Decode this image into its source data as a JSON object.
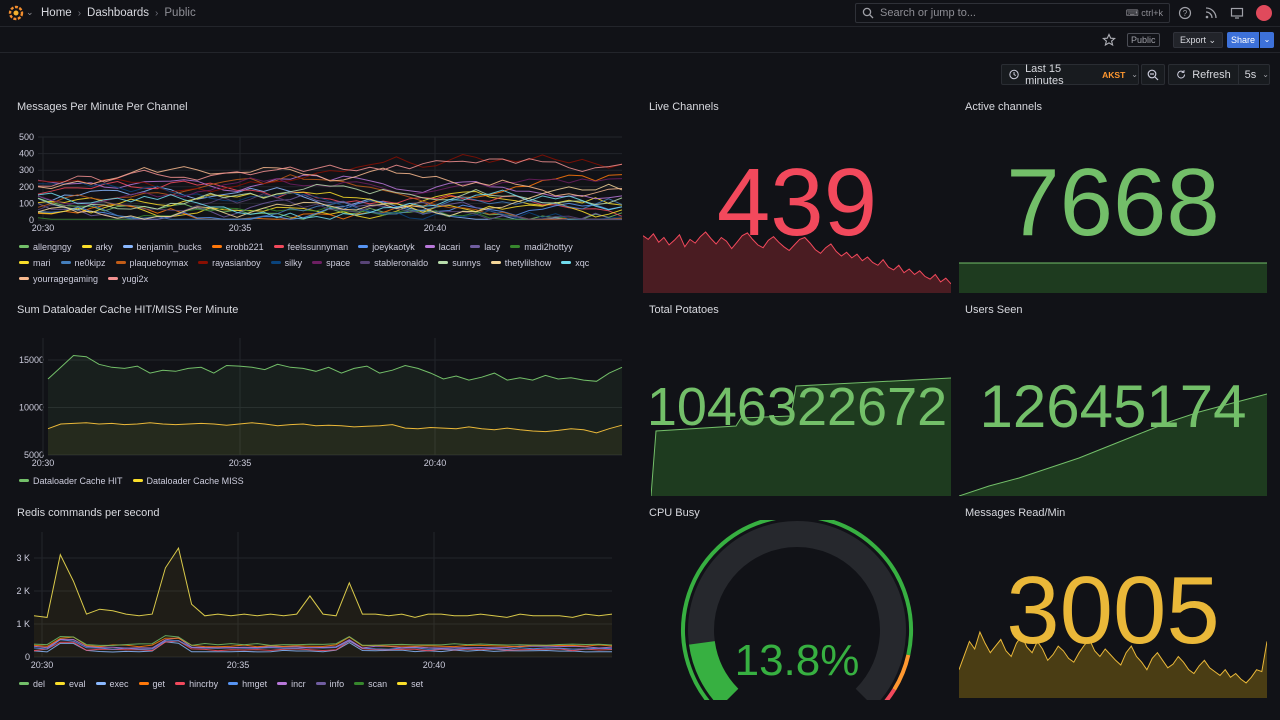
{
  "topbar": {
    "breadcrumbs": [
      "Home",
      "Dashboards",
      "Public"
    ],
    "search_placeholder": "Search or jump to...",
    "search_shortcut": "ctrl+k"
  },
  "dashbar": {
    "public_tag": "Public",
    "export_label": "Export",
    "share_label": "Share"
  },
  "timepicker": {
    "range_label": "Last 15 minutes",
    "timezone": "AKST",
    "refresh_label": "Refresh",
    "refresh_interval": "5s"
  },
  "colors": {
    "green": "#73bf69",
    "red": "#f2495c",
    "yellow": "#fade2a",
    "orange": "#ff9830",
    "blue": "#5794f2",
    "purple": "#b877d9",
    "gauge_green": "#37b041"
  },
  "panels": {
    "messages_per_minute": {
      "title": "Messages Per Minute Per Channel",
      "y_ticks": [
        "500",
        "400",
        "300",
        "200",
        "100",
        "0"
      ],
      "x_ticks": [
        "20:30",
        "20:35",
        "20:40"
      ],
      "legend": [
        {
          "name": "allengngy",
          "color": "#73bf69"
        },
        {
          "name": "arky",
          "color": "#fade2a"
        },
        {
          "name": "benjamin_bucks",
          "color": "#8ab8ff"
        },
        {
          "name": "erobb221",
          "color": "#ff780a"
        },
        {
          "name": "feelssunnyman",
          "color": "#f2495c"
        },
        {
          "name": "joeykaotyk",
          "color": "#5794f2"
        },
        {
          "name": "lacari",
          "color": "#b877d9"
        },
        {
          "name": "lacy",
          "color": "#705da0"
        },
        {
          "name": "madi2hottyy",
          "color": "#37872d"
        },
        {
          "name": "mari",
          "color": "#fade2a"
        },
        {
          "name": "ne0kipz",
          "color": "#447ebc"
        },
        {
          "name": "plaqueboymax",
          "color": "#c15c17"
        },
        {
          "name": "rayasianboy",
          "color": "#890f02"
        },
        {
          "name": "silky",
          "color": "#0a437c"
        },
        {
          "name": "space",
          "color": "#6d1f62"
        },
        {
          "name": "stableronaldo",
          "color": "#584477"
        },
        {
          "name": "sunnys",
          "color": "#b7dbab"
        },
        {
          "name": "thetylilshow",
          "color": "#f4d598"
        },
        {
          "name": "xqc",
          "color": "#70dbed"
        },
        {
          "name": "yourragegaming",
          "color": "#f9ba8f"
        },
        {
          "name": "yugi2x",
          "color": "#f29191"
        }
      ]
    },
    "live_channels": {
      "title": "Live Channels",
      "value": "439",
      "color": "#f2495c",
      "spark": [
        62,
        58,
        64,
        55,
        60,
        52,
        57,
        63,
        50,
        58,
        54,
        61,
        66,
        59,
        53,
        60,
        56,
        48,
        55,
        62,
        65,
        58,
        52,
        49,
        57,
        61,
        55,
        50,
        46,
        52,
        58,
        60,
        54,
        47,
        43,
        49,
        53,
        45,
        40,
        44,
        38,
        42,
        35,
        39,
        33,
        30,
        36,
        28,
        25,
        30,
        22,
        26,
        20,
        24,
        18,
        15,
        20,
        12,
        16,
        10
      ]
    },
    "active_channels": {
      "title": "Active channels",
      "value": "7668",
      "color": "#73bf69"
    },
    "cache_hit_miss": {
      "title": "Sum Dataloader Cache HIT/MISS Per Minute",
      "y_ticks": [
        "15000",
        "10000",
        "5000"
      ],
      "x_ticks": [
        "20:30",
        "20:35",
        "20:40"
      ],
      "legend": [
        {
          "name": "Dataloader Cache HIT",
          "color": "#73bf69"
        },
        {
          "name": "Dataloader Cache MISS",
          "color": "#fade2a"
        }
      ]
    },
    "total_potatoes": {
      "title": "Total Potatoes",
      "value": "1046322672",
      "color": "#73bf69"
    },
    "users_seen": {
      "title": "Users Seen",
      "value": "12645174",
      "color": "#73bf69"
    },
    "redis_commands": {
      "title": "Redis commands per second",
      "y_ticks": [
        "3 K",
        "2 K",
        "1 K",
        "0"
      ],
      "x_ticks": [
        "20:30",
        "20:35",
        "20:40"
      ],
      "legend": [
        {
          "name": "del",
          "color": "#73bf69"
        },
        {
          "name": "eval",
          "color": "#fade2a"
        },
        {
          "name": "exec",
          "color": "#8ab8ff"
        },
        {
          "name": "get",
          "color": "#ff780a"
        },
        {
          "name": "hincrby",
          "color": "#f2495c"
        },
        {
          "name": "hmget",
          "color": "#5794f2"
        },
        {
          "name": "incr",
          "color": "#b877d9"
        },
        {
          "name": "info",
          "color": "#705da0"
        },
        {
          "name": "scan",
          "color": "#37872d"
        },
        {
          "name": "set",
          "color": "#fade2a"
        }
      ]
    },
    "cpu_busy": {
      "title": "CPU Busy",
      "value": "13.8%",
      "percent": 13.8,
      "color": "#37b041"
    },
    "messages_read": {
      "title": "Messages Read/Min",
      "value": "3005",
      "color": "#eab839",
      "spark": [
        30,
        45,
        60,
        52,
        70,
        58,
        48,
        55,
        62,
        50,
        44,
        58,
        66,
        54,
        48,
        60,
        52,
        40,
        46,
        55,
        50,
        42,
        38,
        48,
        56,
        62,
        50,
        44,
        52,
        46,
        40,
        35,
        48,
        55,
        44,
        38,
        30,
        42,
        48,
        40,
        32,
        36,
        44,
        38,
        30,
        26,
        34,
        40,
        32,
        28,
        24,
        30,
        22,
        26,
        20,
        16,
        22,
        30,
        28,
        60
      ]
    }
  }
}
